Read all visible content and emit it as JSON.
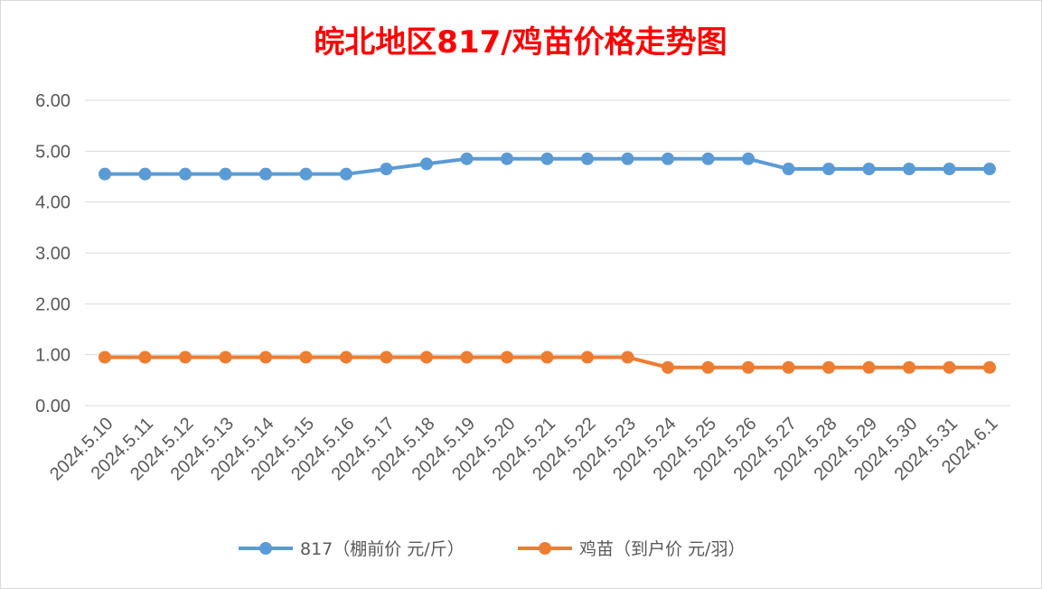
{
  "chart_data": {
    "type": "line",
    "title": "皖北地区817/鸡苗价格走势图",
    "categories": [
      "2024.5.10",
      "2024.5.11",
      "2024.5.12",
      "2024.5.13",
      "2024.5.14",
      "2024.5.15",
      "2024.5.16",
      "2024.5.17",
      "2024.5.18",
      "2024.5.19",
      "2024.5.20",
      "2024.5.21",
      "2024.5.22",
      "2024.5.23",
      "2024.5.24",
      "2024.5.25",
      "2024.5.26",
      "2024.5.27",
      "2024.5.28",
      "2024.5.29",
      "2024.5.30",
      "2024.5.31",
      "2024.6.1"
    ],
    "series": [
      {
        "name": "817（棚前价 元/斤）",
        "color": "#5b9bd5",
        "values": [
          4.55,
          4.55,
          4.55,
          4.55,
          4.55,
          4.55,
          4.55,
          4.65,
          4.75,
          4.85,
          4.85,
          4.85,
          4.85,
          4.85,
          4.85,
          4.85,
          4.85,
          4.65,
          4.65,
          4.65,
          4.65,
          4.65,
          4.65
        ]
      },
      {
        "name": "鸡苗（到户价 元/羽）",
        "color": "#ed7d31",
        "values": [
          0.95,
          0.95,
          0.95,
          0.95,
          0.95,
          0.95,
          0.95,
          0.95,
          0.95,
          0.95,
          0.95,
          0.95,
          0.95,
          0.95,
          0.75,
          0.75,
          0.75,
          0.75,
          0.75,
          0.75,
          0.75,
          0.75,
          0.75
        ]
      }
    ],
    "yticks": [
      "0.00",
      "1.00",
      "2.00",
      "3.00",
      "4.00",
      "5.00",
      "6.00"
    ],
    "ylim": [
      0,
      6
    ],
    "grid": true,
    "legend_position": "bottom",
    "xlabel": "",
    "ylabel": ""
  }
}
